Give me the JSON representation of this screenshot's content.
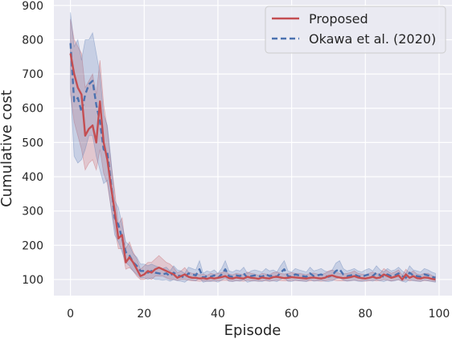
{
  "chart_data": {
    "type": "line",
    "title": "",
    "xlabel": "Episode",
    "ylabel": "Cumulative cost",
    "xlim": [
      -4.5,
      103.5
    ],
    "ylim": [
      53,
      916
    ],
    "x_ticks": [
      0,
      20,
      40,
      60,
      80,
      100
    ],
    "y_ticks": [
      100,
      200,
      300,
      400,
      500,
      600,
      700,
      800,
      900
    ],
    "grid": true,
    "legend_position": "top-right",
    "colors": {
      "background": "#eaeaf2",
      "grid": "#ffffff",
      "proposed": "#c44e52",
      "okawa": "#4c72b0"
    },
    "series": [
      {
        "name": "Proposed",
        "style": "solid",
        "x": [
          0,
          1,
          2,
          3,
          4,
          5,
          6,
          7,
          8,
          9,
          10,
          11,
          12,
          13,
          14,
          15,
          16,
          17,
          18,
          19,
          20,
          21,
          22,
          23,
          24,
          25,
          26,
          27,
          28,
          29,
          30,
          31,
          32,
          33,
          34,
          35,
          36,
          37,
          38,
          39,
          40,
          41,
          42,
          43,
          44,
          45,
          46,
          47,
          48,
          49,
          50,
          51,
          52,
          53,
          54,
          55,
          56,
          57,
          58,
          59,
          60,
          61,
          62,
          63,
          64,
          65,
          66,
          67,
          68,
          69,
          70,
          71,
          72,
          73,
          74,
          75,
          76,
          77,
          78,
          79,
          80,
          81,
          82,
          83,
          84,
          85,
          86,
          87,
          88,
          89,
          90,
          91,
          92,
          93,
          94,
          95,
          96,
          97,
          98,
          99
        ],
        "y": [
          760,
          700,
          660,
          640,
          520,
          540,
          550,
          500,
          620,
          500,
          450,
          370,
          300,
          220,
          230,
          150,
          165,
          150,
          130,
          110,
          115,
          125,
          120,
          130,
          135,
          130,
          125,
          120,
          115,
          105,
          110,
          115,
          108,
          105,
          105,
          103,
          104,
          102,
          105,
          103,
          105,
          107,
          110,
          104,
          103,
          106,
          104,
          103,
          108,
          105,
          104,
          102,
          106,
          104,
          103,
          107,
          108,
          106,
          104,
          105,
          107,
          106,
          105,
          104,
          103,
          105,
          106,
          104,
          103,
          105,
          110,
          112,
          108,
          106,
          104,
          105,
          107,
          110,
          106,
          104,
          103,
          105,
          108,
          104,
          106,
          115,
          110,
          105,
          108,
          112,
          100,
          115,
          105,
          110,
          104,
          103,
          106,
          105,
          102,
          100
        ],
        "lower": [
          640,
          560,
          520,
          480,
          420,
          440,
          450,
          420,
          480,
          410,
          380,
          310,
          250,
          190,
          190,
          130,
          135,
          125,
          110,
          100,
          100,
          105,
          100,
          110,
          110,
          110,
          105,
          100,
          100,
          98,
          100,
          100,
          98,
          96,
          96,
          95,
          96,
          95,
          96,
          95,
          96,
          97,
          98,
          96,
          95,
          97,
          96,
          95,
          98,
          96,
          96,
          95,
          97,
          96,
          95,
          97,
          98,
          97,
          96,
          96,
          97,
          97,
          96,
          96,
          95,
          96,
          97,
          96,
          95,
          96,
          98,
          99,
          97,
          96,
          96,
          96,
          97,
          98,
          97,
          96,
          95,
          96,
          98,
          96,
          97,
          100,
          98,
          96,
          98,
          99,
          95,
          100,
          96,
          98,
          96,
          95,
          97,
          96,
          95,
          94
        ],
        "upper": [
          860,
          800,
          780,
          760,
          660,
          680,
          700,
          640,
          740,
          610,
          540,
          440,
          360,
          260,
          280,
          190,
          210,
          180,
          160,
          130,
          140,
          150,
          150,
          160,
          170,
          160,
          150,
          145,
          135,
          120,
          125,
          135,
          122,
          118,
          118,
          114,
          116,
          112,
          118,
          115,
          118,
          120,
          125,
          116,
          114,
          118,
          116,
          114,
          122,
          118,
          116,
          112,
          118,
          116,
          114,
          120,
          122,
          118,
          116,
          118,
          120,
          118,
          118,
          116,
          114,
          118,
          119,
          116,
          114,
          118,
          125,
          128,
          122,
          118,
          116,
          118,
          120,
          125,
          118,
          116,
          114,
          118,
          122,
          116,
          118,
          132,
          125,
          118,
          122,
          128,
          112,
          130,
          118,
          125,
          116,
          114,
          118,
          118,
          112,
          108
        ]
      },
      {
        "name": "Okawa et al. (2020)",
        "style": "dashed",
        "x": [
          0,
          1,
          2,
          3,
          4,
          5,
          6,
          7,
          8,
          9,
          10,
          11,
          12,
          13,
          14,
          15,
          16,
          17,
          18,
          19,
          20,
          21,
          22,
          23,
          24,
          25,
          26,
          27,
          28,
          29,
          30,
          31,
          32,
          33,
          34,
          35,
          36,
          37,
          38,
          39,
          40,
          41,
          42,
          43,
          44,
          45,
          46,
          47,
          48,
          49,
          50,
          51,
          52,
          53,
          54,
          55,
          56,
          57,
          58,
          59,
          60,
          61,
          62,
          63,
          64,
          65,
          66,
          67,
          68,
          69,
          70,
          71,
          72,
          73,
          74,
          75,
          76,
          77,
          78,
          79,
          80,
          81,
          82,
          83,
          84,
          85,
          86,
          87,
          88,
          89,
          90,
          91,
          92,
          93,
          94,
          95,
          96,
          97,
          98,
          99
        ],
        "y": [
          790,
          620,
          630,
          590,
          640,
          670,
          680,
          610,
          560,
          480,
          470,
          380,
          280,
          260,
          220,
          180,
          170,
          150,
          140,
          125,
          125,
          120,
          125,
          120,
          118,
          115,
          118,
          110,
          120,
          112,
          110,
          105,
          118,
          115,
          112,
          130,
          105,
          110,
          108,
          112,
          105,
          115,
          130,
          110,
          108,
          112,
          110,
          118,
          105,
          110,
          112,
          110,
          108,
          115,
          110,
          112,
          108,
          120,
          130,
          110,
          108,
          115,
          112,
          110,
          108,
          118,
          110,
          112,
          115,
          110,
          108,
          112,
          125,
          130,
          115,
          110,
          112,
          115,
          110,
          108,
          112,
          115,
          110,
          120,
          112,
          108,
          115,
          110,
          112,
          118,
          110,
          105,
          120,
          112,
          110,
          108,
          115,
          112,
          108,
          105
        ],
        "lower": [
          660,
          460,
          440,
          450,
          480,
          520,
          520,
          460,
          420,
          380,
          390,
          310,
          230,
          210,
          180,
          150,
          140,
          125,
          115,
          105,
          105,
          100,
          105,
          100,
          100,
          98,
          100,
          95,
          100,
          96,
          95,
          92,
          100,
          98,
          96,
          105,
          92,
          95,
          94,
          96,
          92,
          98,
          105,
          95,
          94,
          96,
          95,
          100,
          92,
          95,
          96,
          95,
          94,
          98,
          95,
          96,
          94,
          100,
          105,
          95,
          94,
          98,
          96,
          95,
          94,
          100,
          95,
          96,
          98,
          95,
          94,
          96,
          102,
          105,
          98,
          95,
          96,
          98,
          95,
          94,
          96,
          98,
          95,
          100,
          96,
          94,
          98,
          95,
          96,
          100,
          95,
          92,
          100,
          96,
          95,
          94,
          98,
          96,
          94,
          92
        ],
        "upper": [
          880,
          780,
          800,
          740,
          800,
          800,
          820,
          760,
          700,
          580,
          550,
          450,
          330,
          310,
          260,
          210,
          200,
          175,
          165,
          145,
          145,
          140,
          145,
          140,
          136,
          132,
          136,
          125,
          140,
          128,
          125,
          118,
          136,
          132,
          128,
          155,
          118,
          125,
          122,
          128,
          118,
          132,
          155,
          125,
          122,
          128,
          125,
          136,
          118,
          125,
          128,
          125,
          122,
          132,
          125,
          128,
          122,
          140,
          155,
          125,
          122,
          132,
          128,
          125,
          122,
          136,
          125,
          128,
          132,
          125,
          122,
          128,
          148,
          155,
          132,
          125,
          128,
          132,
          125,
          122,
          128,
          132,
          125,
          140,
          128,
          122,
          132,
          125,
          128,
          136,
          125,
          118,
          140,
          128,
          125,
          122,
          132,
          128,
          122,
          118
        ]
      }
    ]
  }
}
